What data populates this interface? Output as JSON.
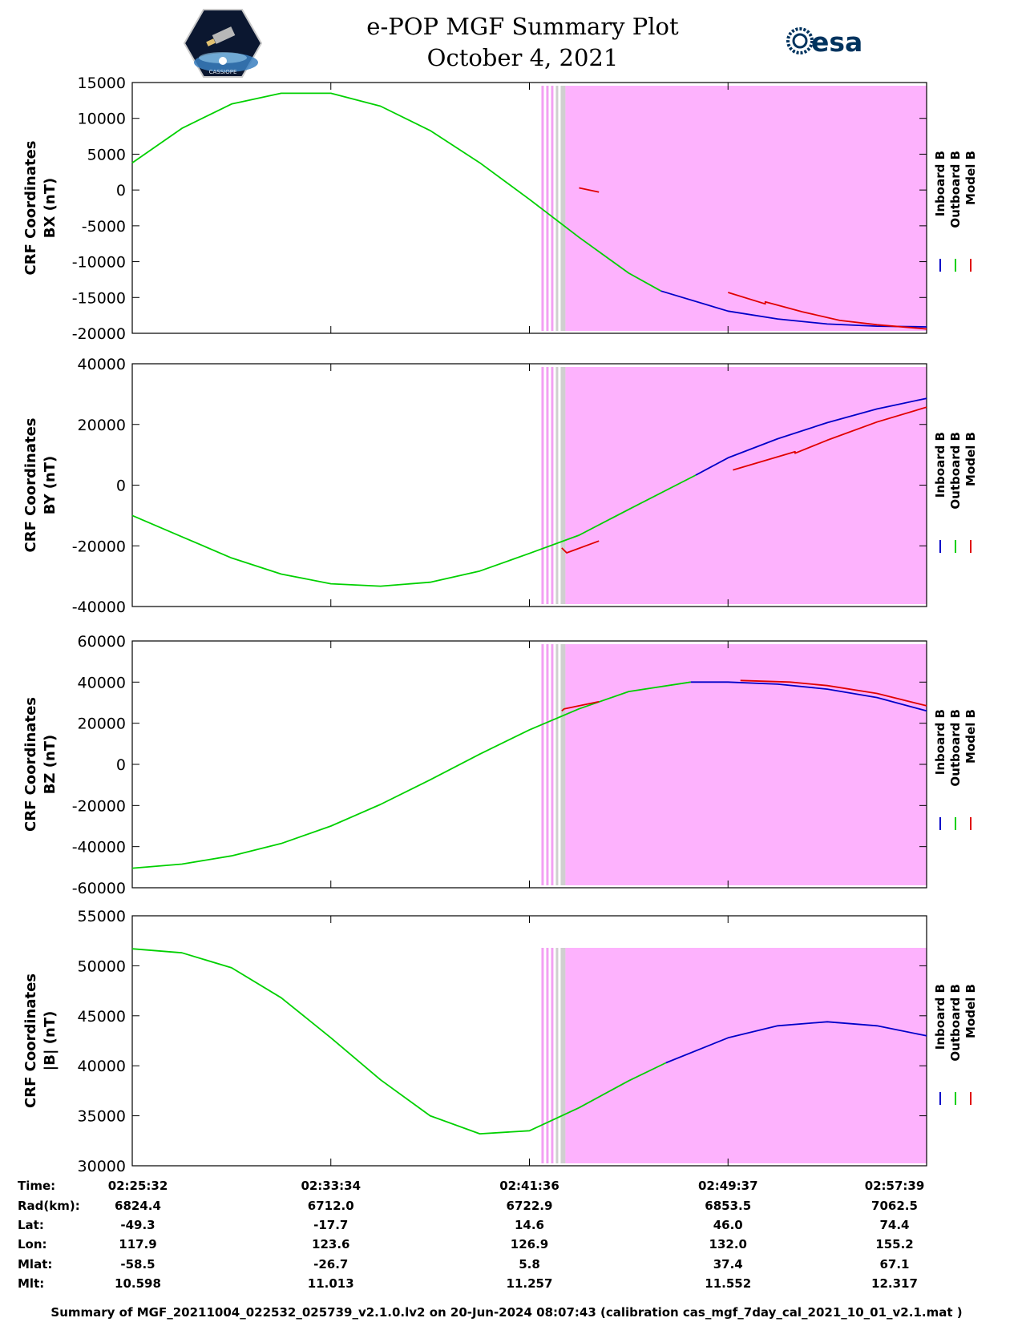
{
  "header": {
    "title": "e-POP MGF Summary Plot",
    "date": "October 4, 2021",
    "logo_left": "CASSIOPE",
    "logo_right": "esa"
  },
  "legend": [
    "Inboard B",
    "Outboard B",
    "Model B"
  ],
  "colors": {
    "inboard": "#0000c8",
    "outboard": "#00d000",
    "model": "#e00000",
    "mode_shade": "#fdb2fd",
    "mode_stripe_pink": "#f3a0f3",
    "mode_stripe_gray": "#cfcfcf"
  },
  "chart_data": [
    {
      "type": "line",
      "ylabel": [
        "CRF Coordinates",
        "BX (nT)"
      ],
      "ylim": [
        -20000,
        15000
      ],
      "yticks": [
        15000,
        10000,
        5000,
        0,
        -5000,
        -10000,
        -15000,
        -20000
      ],
      "x_minutes": [
        0,
        8,
        16,
        24,
        32
      ],
      "shade_x_minutes": [
        16.45,
        32
      ],
      "series": [
        {
          "name": "Outboard B",
          "x": [
            0,
            2,
            4,
            6,
            8,
            10,
            12,
            14,
            16,
            18,
            20,
            21.3
          ],
          "y": [
            3800,
            8600,
            12000,
            13500,
            13500,
            11700,
            8300,
            3800,
            -1300,
            -6600,
            -11600,
            -14100
          ]
        },
        {
          "name": "Inboard B",
          "x": [
            21.3,
            24,
            26,
            28,
            30,
            32
          ],
          "y": [
            -14100,
            -16900,
            -18000,
            -18700,
            -19000,
            -19100
          ]
        },
        {
          "name": "Model B",
          "x": [
            18,
            18.8
          ],
          "y": [
            300,
            -300
          ]
        },
        {
          "name": "Model B",
          "x": [
            24,
            25.5,
            25.5,
            27,
            28.5,
            30,
            32
          ],
          "y": [
            -14300,
            -15900,
            -15600,
            -17000,
            -18200,
            -18800,
            -19400
          ]
        }
      ]
    },
    {
      "type": "line",
      "ylabel": [
        "CRF Coordinates",
        "BY (nT)"
      ],
      "ylim": [
        -40000,
        40000
      ],
      "yticks": [
        40000,
        20000,
        0,
        -20000,
        -40000
      ],
      "x_minutes": [
        0,
        8,
        16,
        24,
        32
      ],
      "shade_x_minutes": [
        16.45,
        32
      ],
      "series": [
        {
          "name": "Outboard B",
          "x": [
            0,
            2,
            4,
            6,
            8,
            10,
            12,
            14,
            16,
            18,
            20,
            22.7
          ],
          "y": [
            -10000,
            -17000,
            -24000,
            -29300,
            -32500,
            -33300,
            -32000,
            -28300,
            -22500,
            -16500,
            -8000,
            3300
          ]
        },
        {
          "name": "Inboard B",
          "x": [
            22.7,
            24,
            26,
            28,
            30,
            32
          ],
          "y": [
            3300,
            9000,
            15300,
            20600,
            25100,
            28600
          ]
        },
        {
          "name": "Model B",
          "x": [
            17.3,
            17.5,
            18.8
          ],
          "y": [
            -20700,
            -22300,
            -18400
          ]
        },
        {
          "name": "Model B",
          "x": [
            24.2,
            26.7,
            26.7,
            28,
            30,
            32
          ],
          "y": [
            5000,
            11000,
            10500,
            14800,
            20800,
            25700
          ]
        }
      ]
    },
    {
      "type": "line",
      "ylabel": [
        "CRF Coordinates",
        "BZ (nT)"
      ],
      "ylim": [
        -60000,
        60000
      ],
      "yticks": [
        60000,
        40000,
        20000,
        0,
        -20000,
        -40000,
        -60000
      ],
      "x_minutes": [
        0,
        8,
        16,
        24,
        32
      ],
      "shade_x_minutes": [
        16.45,
        32
      ],
      "series": [
        {
          "name": "Outboard B",
          "x": [
            0,
            2,
            4,
            6,
            8,
            10,
            12,
            14,
            16,
            18,
            20,
            22.5
          ],
          "y": [
            -50500,
            -48500,
            -44500,
            -38500,
            -30000,
            -19500,
            -7500,
            5000,
            16800,
            27000,
            35400,
            40000
          ]
        },
        {
          "name": "Inboard B",
          "x": [
            22.5,
            24,
            26,
            28,
            30,
            32
          ],
          "y": [
            40000,
            40000,
            39000,
            36600,
            32500,
            26000
          ]
        },
        {
          "name": "Model B",
          "x": [
            17.3,
            17.4,
            18.8
          ],
          "y": [
            26000,
            27000,
            30500
          ]
        },
        {
          "name": "Model B",
          "x": [
            24.5,
            26.5,
            28,
            30,
            32
          ],
          "y": [
            40800,
            40000,
            38300,
            34500,
            28500
          ]
        }
      ]
    },
    {
      "type": "line",
      "ylabel": [
        "CRF Coordinates",
        "|B| (nT)"
      ],
      "ylim": [
        30000,
        55000
      ],
      "yticks": [
        55000,
        50000,
        45000,
        40000,
        35000,
        30000
      ],
      "x_minutes": [
        0,
        8,
        16,
        24,
        32
      ],
      "shade_x_minutes": [
        16.45,
        32
      ],
      "series": [
        {
          "name": "Outboard B",
          "x": [
            0,
            2,
            4,
            6,
            8,
            10,
            12,
            14,
            16,
            18,
            20,
            21.5
          ],
          "y": [
            51700,
            51300,
            49800,
            46800,
            42800,
            38600,
            35000,
            33200,
            33500,
            35800,
            38500,
            40300
          ]
        },
        {
          "name": "Inboard B",
          "x": [
            21.5,
            24,
            26,
            28,
            30,
            32
          ],
          "y": [
            40300,
            42800,
            44000,
            44400,
            44000,
            43000
          ]
        }
      ]
    }
  ],
  "info_table": {
    "row_labels": [
      "Time:",
      "Rad(km):",
      "Lat:",
      "Lon:",
      "Mlat:",
      "Mlt:"
    ],
    "columns": [
      [
        "02:25:32",
        "6824.4",
        "-49.3",
        "117.9",
        "-58.5",
        "10.598"
      ],
      [
        "02:33:34",
        "6712.0",
        "-17.7",
        "123.6",
        "-26.7",
        "11.013"
      ],
      [
        "02:41:36",
        "6722.9",
        "14.6",
        "126.9",
        "5.8",
        "11.257"
      ],
      [
        "02:49:37",
        "6853.5",
        "46.0",
        "132.0",
        "37.4",
        "11.552"
      ],
      [
        "02:57:39",
        "7062.5",
        "74.4",
        "155.2",
        "67.1",
        "12.317"
      ]
    ]
  },
  "footer": "Summary of MGF_20211004_022532_025739_v2.1.0.lv2 on 20-Jun-2024 08:07:43 (calibration cas_mgf_7day_cal_2021_10_01_v2.1.mat )"
}
